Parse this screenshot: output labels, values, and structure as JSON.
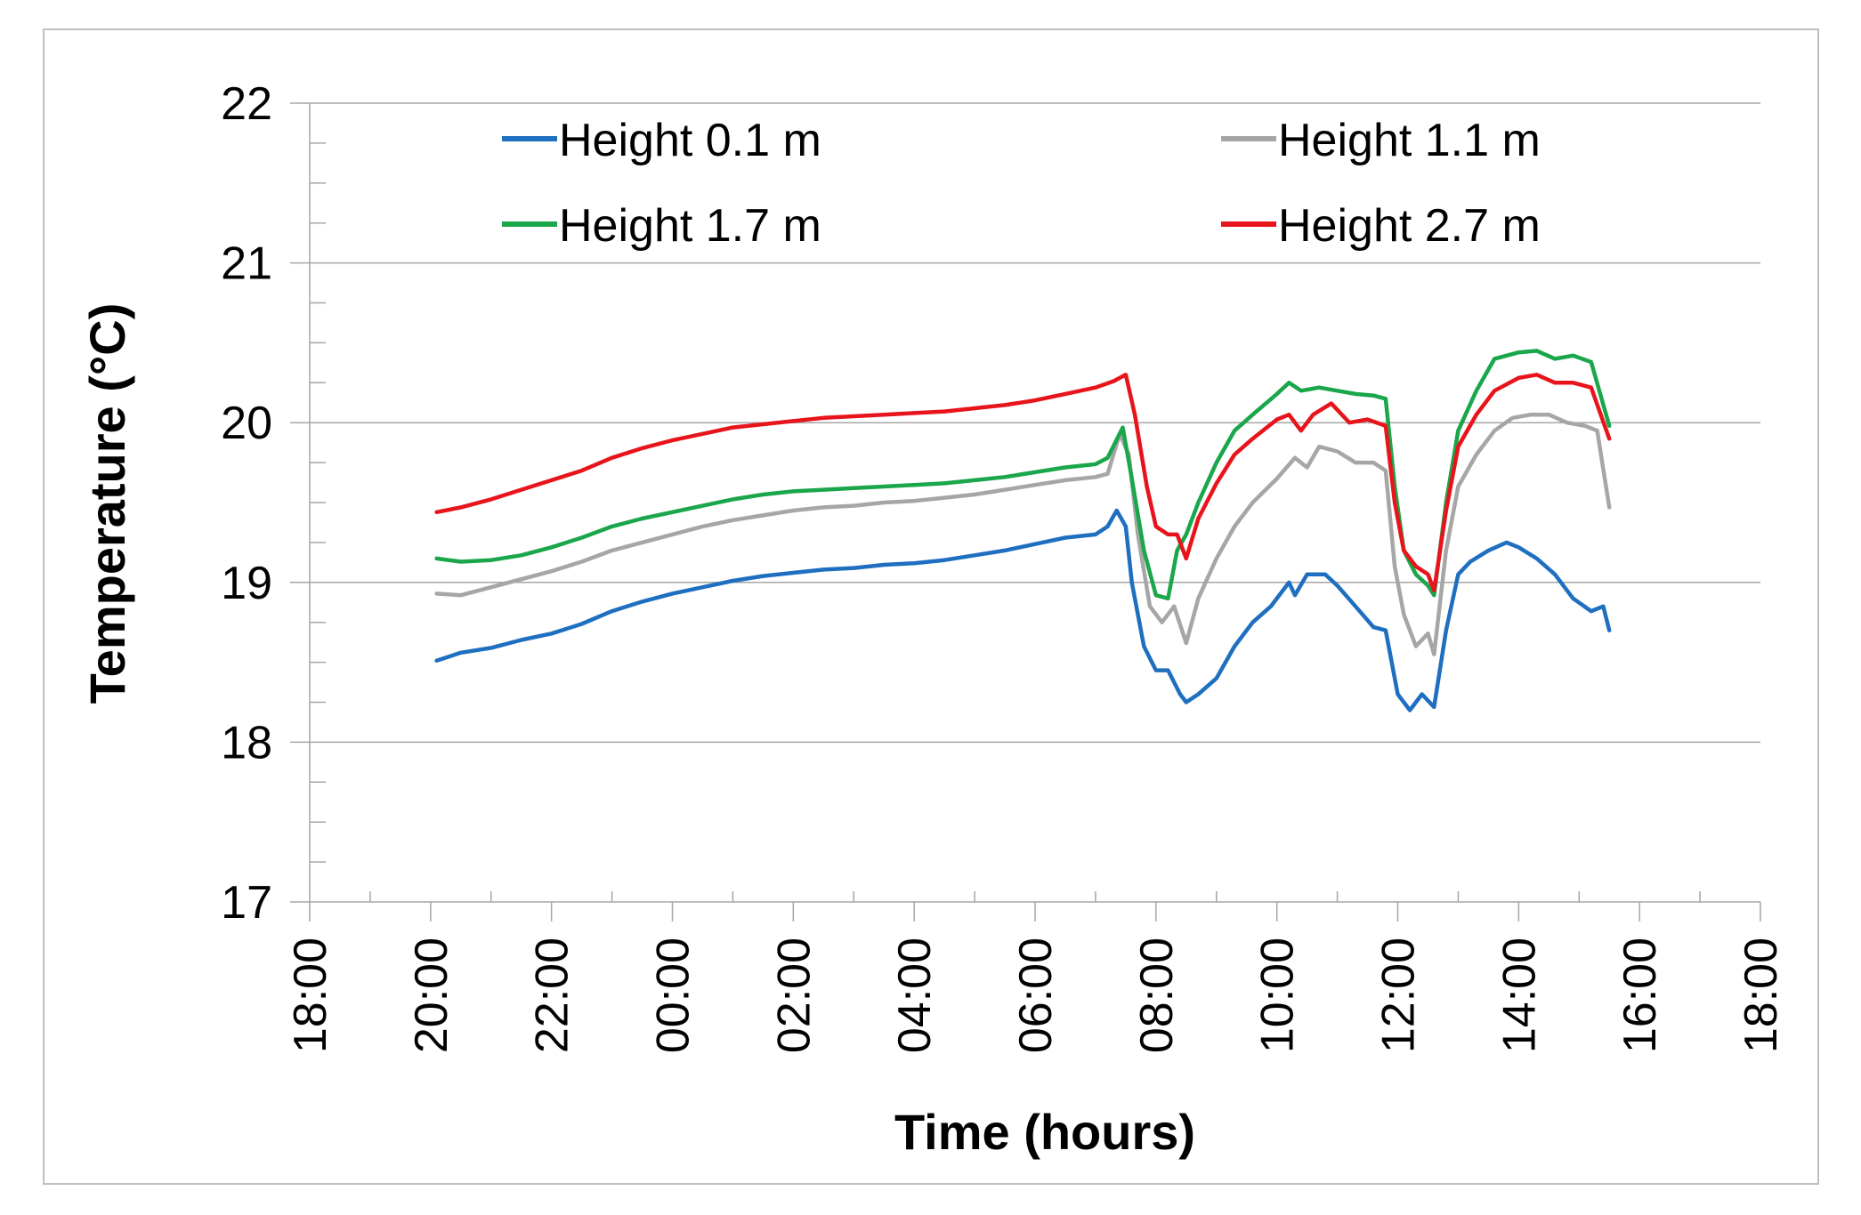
{
  "chart_data": {
    "type": "line",
    "title": "",
    "xlabel": "Time (hours)",
    "ylabel": "Temperature (°C)",
    "xlim": [
      18,
      42
    ],
    "ylim": [
      17,
      22
    ],
    "grid": true,
    "legend_position": "top",
    "x_tick_values": [
      18,
      20,
      22,
      24,
      26,
      28,
      30,
      32,
      34,
      36,
      38,
      40,
      42
    ],
    "x_tick_labels": [
      "18:00",
      "20:00",
      "22:00",
      "00:00",
      "02:00",
      "04:00",
      "06:00",
      "08:00",
      "10:00",
      "12:00",
      "14:00",
      "16:00",
      "18:00"
    ],
    "y_tick_values": [
      17,
      18,
      19,
      20,
      21,
      22
    ],
    "y_tick_labels": [
      "17",
      "18",
      "19",
      "20",
      "21",
      "22"
    ],
    "series": [
      {
        "name": "Height 0.1 m",
        "color": "#1f6fc0",
        "points": [
          [
            20.1,
            18.51
          ],
          [
            20.5,
            18.56
          ],
          [
            21,
            18.59
          ],
          [
            21.5,
            18.64
          ],
          [
            22,
            18.68
          ],
          [
            22.5,
            18.74
          ],
          [
            23,
            18.82
          ],
          [
            23.5,
            18.88
          ],
          [
            24,
            18.93
          ],
          [
            24.5,
            18.97
          ],
          [
            25,
            19.01
          ],
          [
            25.5,
            19.04
          ],
          [
            26,
            19.06
          ],
          [
            26.5,
            19.08
          ],
          [
            27,
            19.09
          ],
          [
            27.5,
            19.11
          ],
          [
            28,
            19.12
          ],
          [
            28.5,
            19.14
          ],
          [
            29,
            19.17
          ],
          [
            29.5,
            19.2
          ],
          [
            30,
            19.24
          ],
          [
            30.5,
            19.28
          ],
          [
            31,
            19.3
          ],
          [
            31.2,
            19.35
          ],
          [
            31.35,
            19.45
          ],
          [
            31.5,
            19.35
          ],
          [
            31.6,
            19.0
          ],
          [
            31.8,
            18.6
          ],
          [
            32.0,
            18.45
          ],
          [
            32.2,
            18.45
          ],
          [
            32.4,
            18.3
          ],
          [
            32.5,
            18.25
          ],
          [
            32.7,
            18.3
          ],
          [
            33.0,
            18.4
          ],
          [
            33.3,
            18.6
          ],
          [
            33.6,
            18.75
          ],
          [
            33.9,
            18.85
          ],
          [
            34.0,
            18.9
          ],
          [
            34.2,
            19.0
          ],
          [
            34.3,
            18.92
          ],
          [
            34.5,
            19.05
          ],
          [
            34.8,
            19.05
          ],
          [
            35.0,
            18.98
          ],
          [
            35.3,
            18.85
          ],
          [
            35.6,
            18.72
          ],
          [
            35.8,
            18.7
          ],
          [
            35.9,
            18.5
          ],
          [
            36.0,
            18.3
          ],
          [
            36.2,
            18.2
          ],
          [
            36.4,
            18.3
          ],
          [
            36.6,
            18.22
          ],
          [
            36.8,
            18.7
          ],
          [
            37.0,
            19.05
          ],
          [
            37.2,
            19.13
          ],
          [
            37.5,
            19.2
          ],
          [
            37.8,
            19.25
          ],
          [
            38.0,
            19.22
          ],
          [
            38.3,
            19.15
          ],
          [
            38.6,
            19.05
          ],
          [
            38.9,
            18.9
          ],
          [
            39.2,
            18.82
          ],
          [
            39.4,
            18.85
          ],
          [
            39.5,
            18.7
          ]
        ]
      },
      {
        "name": "Height 1.1 m",
        "color": "#a6a6a6",
        "points": [
          [
            20.1,
            18.93
          ],
          [
            20.5,
            18.92
          ],
          [
            21,
            18.97
          ],
          [
            21.5,
            19.02
          ],
          [
            22,
            19.07
          ],
          [
            22.5,
            19.13
          ],
          [
            23,
            19.2
          ],
          [
            23.5,
            19.25
          ],
          [
            24,
            19.3
          ],
          [
            24.5,
            19.35
          ],
          [
            25,
            19.39
          ],
          [
            25.5,
            19.42
          ],
          [
            26,
            19.45
          ],
          [
            26.5,
            19.47
          ],
          [
            27,
            19.48
          ],
          [
            27.5,
            19.5
          ],
          [
            28,
            19.51
          ],
          [
            28.5,
            19.53
          ],
          [
            29,
            19.55
          ],
          [
            29.5,
            19.58
          ],
          [
            30,
            19.61
          ],
          [
            30.5,
            19.64
          ],
          [
            31,
            19.66
          ],
          [
            31.2,
            19.68
          ],
          [
            31.4,
            19.93
          ],
          [
            31.55,
            19.8
          ],
          [
            31.7,
            19.3
          ],
          [
            31.9,
            18.85
          ],
          [
            32.1,
            18.75
          ],
          [
            32.3,
            18.85
          ],
          [
            32.5,
            18.62
          ],
          [
            32.7,
            18.9
          ],
          [
            33.0,
            19.15
          ],
          [
            33.3,
            19.35
          ],
          [
            33.6,
            19.5
          ],
          [
            34.0,
            19.65
          ],
          [
            34.3,
            19.78
          ],
          [
            34.5,
            19.72
          ],
          [
            34.7,
            19.85
          ],
          [
            35.0,
            19.82
          ],
          [
            35.3,
            19.75
          ],
          [
            35.6,
            19.75
          ],
          [
            35.8,
            19.7
          ],
          [
            35.95,
            19.1
          ],
          [
            36.1,
            18.8
          ],
          [
            36.3,
            18.6
          ],
          [
            36.5,
            18.68
          ],
          [
            36.6,
            18.55
          ],
          [
            36.8,
            19.2
          ],
          [
            37.0,
            19.6
          ],
          [
            37.3,
            19.8
          ],
          [
            37.6,
            19.95
          ],
          [
            37.9,
            20.03
          ],
          [
            38.2,
            20.05
          ],
          [
            38.5,
            20.05
          ],
          [
            38.8,
            20.0
          ],
          [
            39.1,
            19.98
          ],
          [
            39.3,
            19.95
          ],
          [
            39.5,
            19.47
          ]
        ]
      },
      {
        "name": "Height 1.7 m",
        "color": "#1aa64a",
        "points": [
          [
            20.1,
            19.15
          ],
          [
            20.5,
            19.13
          ],
          [
            21,
            19.14
          ],
          [
            21.5,
            19.17
          ],
          [
            22,
            19.22
          ],
          [
            22.5,
            19.28
          ],
          [
            23,
            19.35
          ],
          [
            23.5,
            19.4
          ],
          [
            24,
            19.44
          ],
          [
            24.5,
            19.48
          ],
          [
            25,
            19.52
          ],
          [
            25.5,
            19.55
          ],
          [
            26,
            19.57
          ],
          [
            26.5,
            19.58
          ],
          [
            27,
            19.59
          ],
          [
            27.5,
            19.6
          ],
          [
            28,
            19.61
          ],
          [
            28.5,
            19.62
          ],
          [
            29,
            19.64
          ],
          [
            29.5,
            19.66
          ],
          [
            30,
            19.69
          ],
          [
            30.5,
            19.72
          ],
          [
            31,
            19.74
          ],
          [
            31.2,
            19.78
          ],
          [
            31.45,
            19.97
          ],
          [
            31.6,
            19.65
          ],
          [
            31.8,
            19.2
          ],
          [
            32.0,
            18.92
          ],
          [
            32.2,
            18.9
          ],
          [
            32.35,
            19.2
          ],
          [
            32.5,
            19.3
          ],
          [
            32.7,
            19.5
          ],
          [
            33.0,
            19.75
          ],
          [
            33.3,
            19.95
          ],
          [
            33.6,
            20.05
          ],
          [
            34.0,
            20.18
          ],
          [
            34.2,
            20.25
          ],
          [
            34.4,
            20.2
          ],
          [
            34.7,
            20.22
          ],
          [
            35.0,
            20.2
          ],
          [
            35.3,
            20.18
          ],
          [
            35.6,
            20.17
          ],
          [
            35.8,
            20.15
          ],
          [
            35.95,
            19.6
          ],
          [
            36.1,
            19.2
          ],
          [
            36.3,
            19.05
          ],
          [
            36.5,
            18.98
          ],
          [
            36.6,
            18.92
          ],
          [
            36.8,
            19.5
          ],
          [
            37.0,
            19.95
          ],
          [
            37.3,
            20.2
          ],
          [
            37.6,
            20.4
          ],
          [
            38.0,
            20.44
          ],
          [
            38.3,
            20.45
          ],
          [
            38.6,
            20.4
          ],
          [
            38.9,
            20.42
          ],
          [
            39.2,
            20.38
          ],
          [
            39.5,
            19.98
          ]
        ]
      },
      {
        "name": "Height 2.7 m",
        "color": "#e8141c",
        "points": [
          [
            20.1,
            19.44
          ],
          [
            20.5,
            19.47
          ],
          [
            21,
            19.52
          ],
          [
            21.5,
            19.58
          ],
          [
            22,
            19.64
          ],
          [
            22.5,
            19.7
          ],
          [
            23,
            19.78
          ],
          [
            23.5,
            19.84
          ],
          [
            24,
            19.89
          ],
          [
            24.5,
            19.93
          ],
          [
            25,
            19.97
          ],
          [
            25.5,
            19.99
          ],
          [
            26,
            20.01
          ],
          [
            26.5,
            20.03
          ],
          [
            27,
            20.04
          ],
          [
            27.5,
            20.05
          ],
          [
            28,
            20.06
          ],
          [
            28.5,
            20.07
          ],
          [
            29,
            20.09
          ],
          [
            29.5,
            20.11
          ],
          [
            30,
            20.14
          ],
          [
            30.5,
            20.18
          ],
          [
            31,
            20.22
          ],
          [
            31.3,
            20.26
          ],
          [
            31.5,
            20.3
          ],
          [
            31.65,
            20.05
          ],
          [
            31.85,
            19.6
          ],
          [
            32.0,
            19.35
          ],
          [
            32.2,
            19.3
          ],
          [
            32.35,
            19.3
          ],
          [
            32.5,
            19.15
          ],
          [
            32.7,
            19.4
          ],
          [
            33.0,
            19.62
          ],
          [
            33.3,
            19.8
          ],
          [
            33.6,
            19.9
          ],
          [
            34.0,
            20.02
          ],
          [
            34.2,
            20.05
          ],
          [
            34.4,
            19.95
          ],
          [
            34.6,
            20.05
          ],
          [
            34.9,
            20.12
          ],
          [
            35.2,
            20.0
          ],
          [
            35.5,
            20.02
          ],
          [
            35.8,
            19.98
          ],
          [
            35.95,
            19.5
          ],
          [
            36.1,
            19.2
          ],
          [
            36.3,
            19.1
          ],
          [
            36.5,
            19.05
          ],
          [
            36.6,
            18.95
          ],
          [
            36.8,
            19.45
          ],
          [
            37.0,
            19.85
          ],
          [
            37.3,
            20.05
          ],
          [
            37.6,
            20.2
          ],
          [
            38.0,
            20.28
          ],
          [
            38.3,
            20.3
          ],
          [
            38.6,
            20.25
          ],
          [
            38.9,
            20.25
          ],
          [
            39.2,
            20.22
          ],
          [
            39.5,
            19.9
          ]
        ]
      }
    ]
  }
}
